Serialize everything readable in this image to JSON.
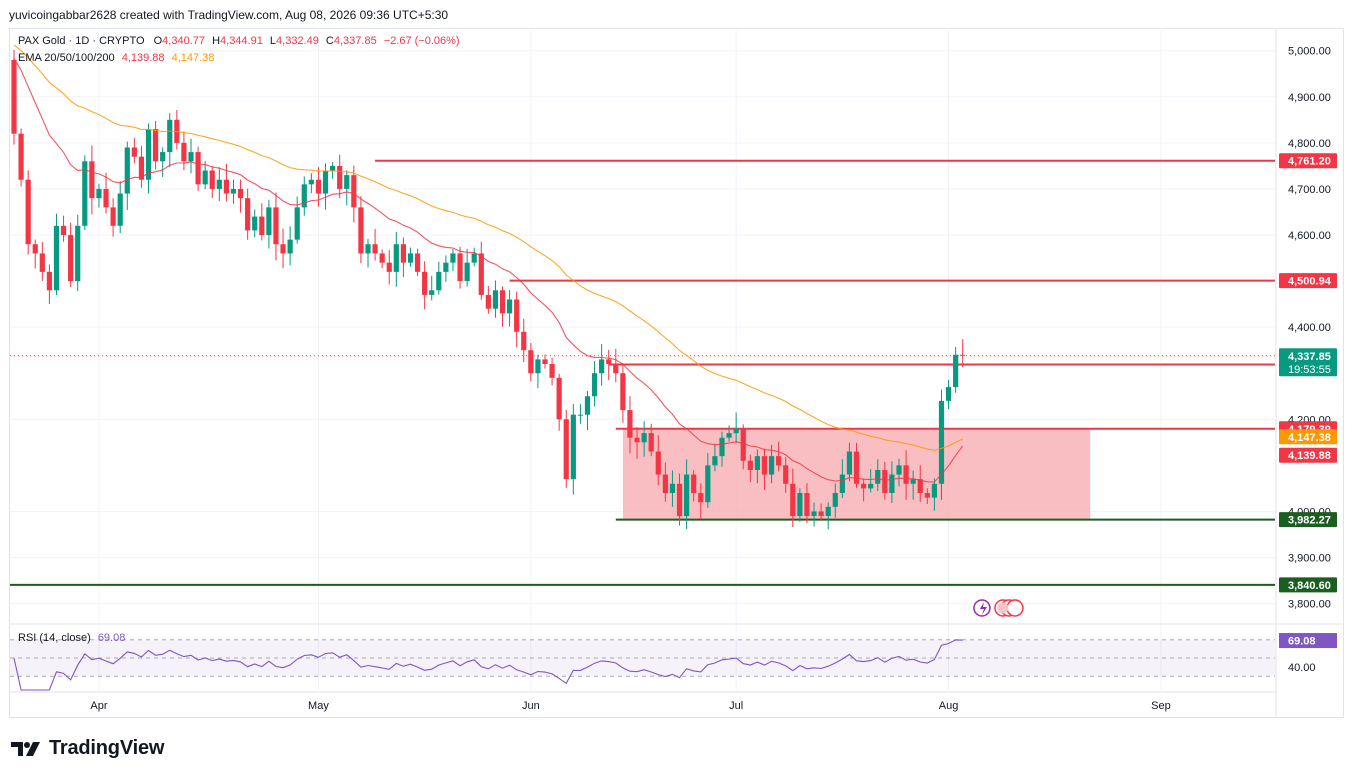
{
  "header": {
    "credit": "yuvicoingabbar2628 created with TradingView.com, Aug 08, 2026 09:36 UTC+5:30"
  },
  "legend": {
    "symbol": "PAX Gold · 1D · CRYPTO",
    "open_label": "O",
    "open": "4,340.77",
    "high_label": "H",
    "high": "4,344.91",
    "low_label": "L",
    "low": "4,332.49",
    "close_label": "C",
    "close": "4,337.85",
    "change": "−2.67 (−0.06%)",
    "ema_label": "EMA 20/50/100/200",
    "ema1": "4,139.88",
    "ema2": "4,147.38"
  },
  "rsi_legend": {
    "label": "RSI (14, close)",
    "value": "69.08"
  },
  "brand": {
    "name": "TradingView"
  },
  "colors": {
    "up": "#089981",
    "down": "#f23645",
    "ema_fast": "#f23645",
    "ema_slow": "#ff9800",
    "rsi": "#7e57c2",
    "support": "#1b5e20",
    "zone_fill": "#f7a8ae"
  },
  "chart_data": {
    "type": "candlestick",
    "y_axis": {
      "range": [
        3760,
        5045
      ],
      "ticks": [
        "5,000.00",
        "4,900.00",
        "4,800.00",
        "4,700.00",
        "4,600.00",
        "4,400.00",
        "4,200.00",
        "4,000.00",
        "3,900.00",
        "3,800.00"
      ],
      "tick_values": [
        5000,
        4900,
        4800,
        4700,
        4600,
        4400,
        4200,
        4000,
        3900,
        3800
      ]
    },
    "x_axis": {
      "labels": [
        "Apr",
        "May",
        "Jun",
        "Jul",
        "Aug",
        "Sep"
      ],
      "label_bar_index": [
        12,
        43,
        73,
        102,
        132,
        162
      ]
    },
    "horizontal_levels": [
      {
        "value": 4761.2,
        "label": "4,761.20",
        "color": "#f23645"
      },
      {
        "value": 4500.94,
        "label": "4,500.94",
        "color": "#f23645"
      },
      {
        "value": 4319.01,
        "label": "4,319.01",
        "color": "#f23645"
      },
      {
        "value": 4179.39,
        "label": "4,179.39",
        "color": "#f23645"
      },
      {
        "value": 3982.27,
        "label": "3,982.27",
        "color": "#1b5e20"
      },
      {
        "value": 3840.6,
        "label": "3,840.60",
        "color": "#1b5e20"
      }
    ],
    "price_labels": [
      {
        "value": 4337.85,
        "label": "4,337.85",
        "sub": "19:53:55",
        "color": "#089981"
      },
      {
        "value": 4147.38,
        "label": "4,147.38",
        "color": "#ff9800"
      },
      {
        "value": 4139.88,
        "label": "4,139.88",
        "color": "#f23645"
      }
    ],
    "range_zone": {
      "top": 4179.39,
      "bottom": 3982.27,
      "from_bar": 86,
      "to_bar": 152
    },
    "closes": [
      4820,
      4720,
      4580,
      4560,
      4520,
      4480,
      4620,
      4600,
      4500,
      4620,
      4760,
      4680,
      4700,
      4660,
      4620,
      4690,
      4790,
      4770,
      4720,
      4830,
      4760,
      4780,
      4850,
      4800,
      4760,
      4780,
      4710,
      4740,
      4700,
      4720,
      4690,
      4700,
      4680,
      4610,
      4640,
      4600,
      4660,
      4580,
      4560,
      4590,
      4660,
      4710,
      4720,
      4690,
      4740,
      4750,
      4700,
      4730,
      4660,
      4560,
      4580,
      4560,
      4540,
      4520,
      4580,
      4540,
      4560,
      4520,
      4470,
      4480,
      4520,
      4540,
      4560,
      4500,
      4540,
      4560,
      4470,
      4440,
      4480,
      4430,
      4460,
      4390,
      4350,
      4300,
      4330,
      4320,
      4290,
      4200,
      4070,
      4210,
      4210,
      4250,
      4300,
      4330,
      4320,
      4300,
      4220,
      4160,
      4150,
      4170,
      4130,
      4080,
      4040,
      4060,
      3990,
      4080,
      4040,
      4020,
      4100,
      4120,
      4160,
      4170,
      4180,
      4110,
      4090,
      4120,
      4080,
      4120,
      4100,
      4060,
      3990,
      4040,
      3990,
      4000,
      3990,
      4010,
      4040,
      4080,
      4130,
      4060,
      4050,
      4060,
      4090,
      4040,
      4080,
      4100,
      4060,
      4070,
      4040,
      4030,
      4060,
      4240,
      4270,
      4340,
      4338
    ],
    "rsi": {
      "range": [
        15,
        85
      ],
      "levels": [
        70,
        50,
        30
      ],
      "tick_label": "40.00",
      "tick_value": 40
    }
  }
}
